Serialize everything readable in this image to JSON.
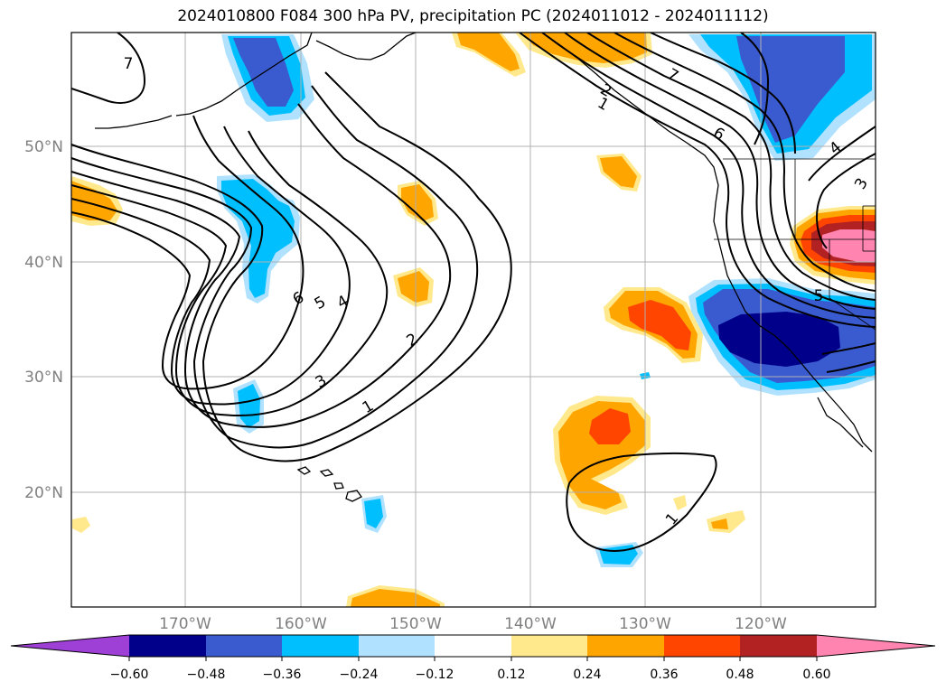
{
  "title": "2024010800 F084 300 hPa PV, precipitation PC (2024011012 - 2024011112)",
  "latitude_labels": [
    "50°N",
    "40°N",
    "30°N",
    "20°N"
  ],
  "longitude_labels": [
    "170°W",
    "160°W",
    "150°W",
    "140°W",
    "130°W",
    "120°W"
  ],
  "contour_labels": [
    "7",
    "6",
    "5",
    "4",
    "3",
    "2",
    "1",
    "1",
    "7",
    "6",
    "4",
    "3",
    "5",
    "1",
    "2"
  ],
  "colorbar": {
    "tick_labels": [
      "−0.60",
      "−0.48",
      "−0.36",
      "−0.24",
      "−0.12",
      "0.12",
      "0.24",
      "0.36",
      "0.48",
      "0.60"
    ],
    "colors": [
      "#9e3fd6",
      "#00008b",
      "#3a5bd0",
      "#00bfff",
      "#b0e2ff",
      "#ffffff",
      "#ffe98c",
      "#ffa500",
      "#ff4500",
      "#b22222",
      "#ff85b0"
    ]
  },
  "fill_colors": {
    "neg_light": "#b0e2ff",
    "neg_mid": "#00bfff",
    "neg_dark": "#3a5bd0",
    "neg_darkest": "#00008b",
    "pos_light": "#ffe98c",
    "pos_mid": "#ffa500",
    "pos_dark": "#ff4500",
    "pos_darker": "#b22222",
    "pos_darkest": "#ff85b0"
  }
}
